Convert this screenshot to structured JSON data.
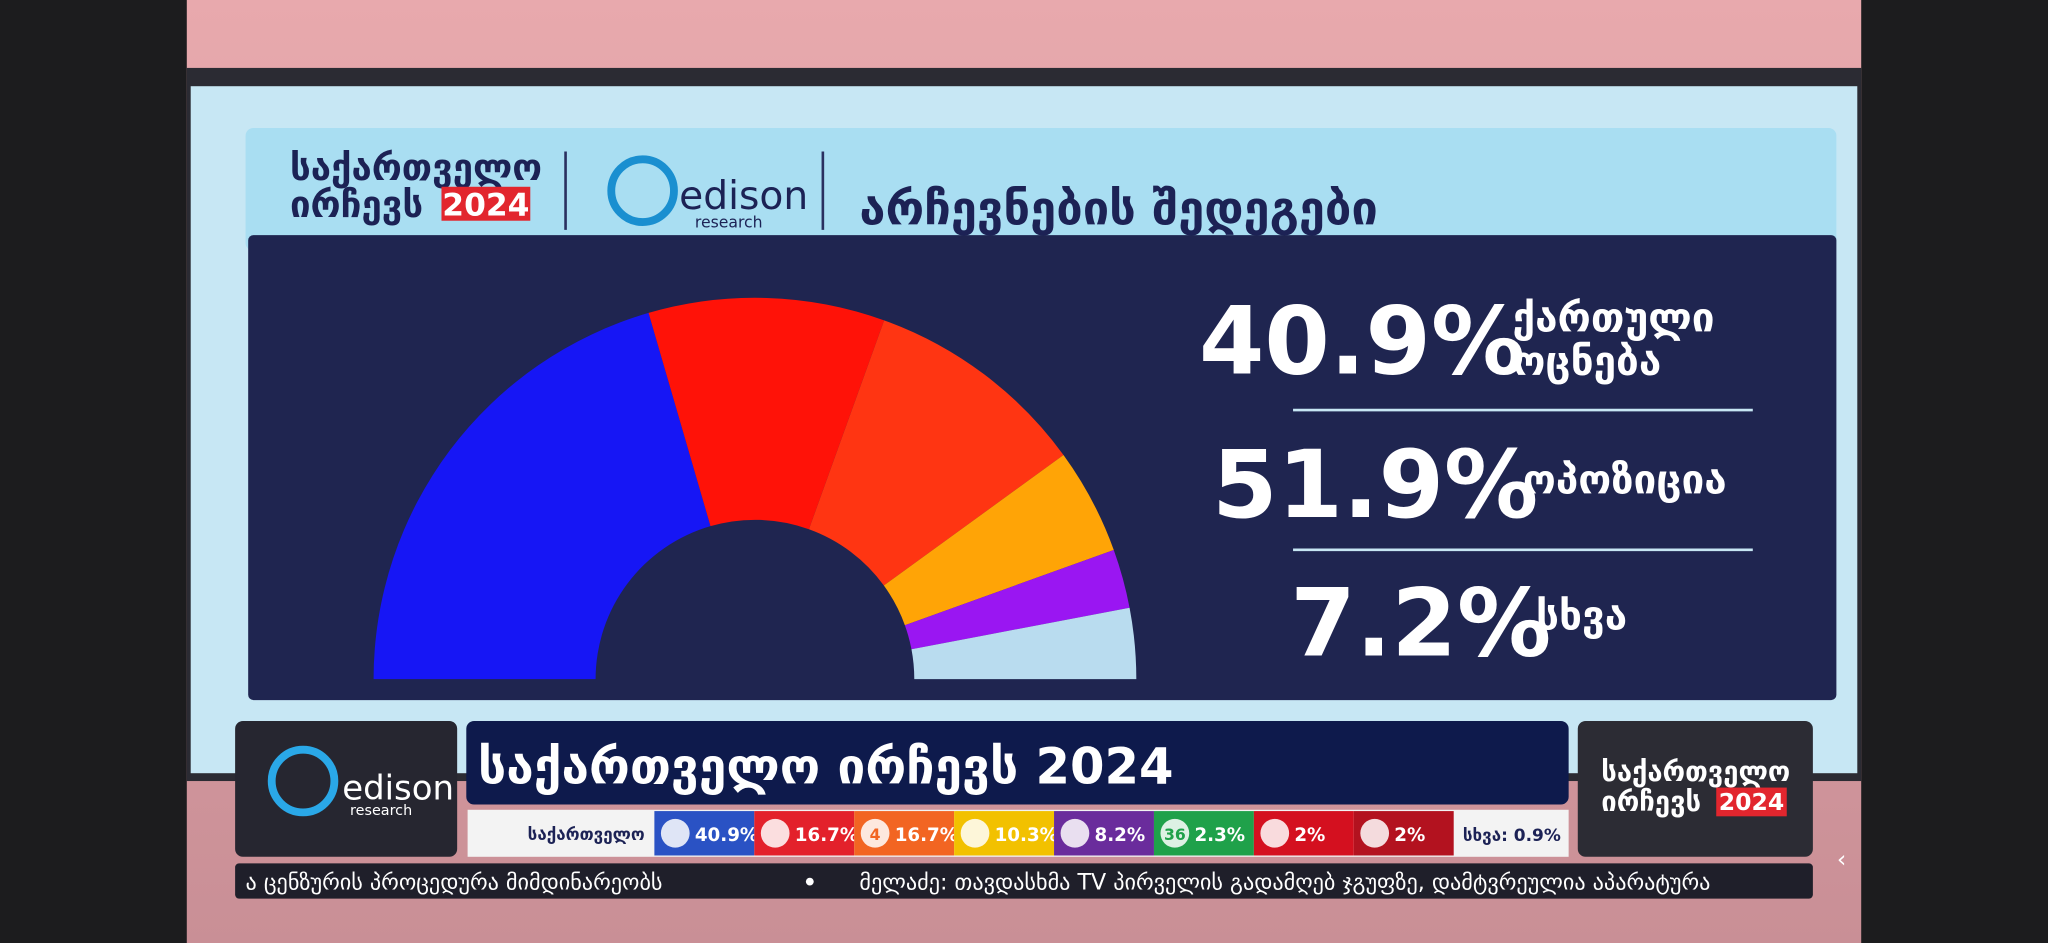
{
  "header": {
    "brand_line1": "საქართველო",
    "brand_line2": "ირჩევს",
    "brand_year": "2024",
    "logo_name": "edison",
    "logo_sub": "research",
    "title": "არჩევნების შედეგები"
  },
  "chart_data": {
    "type": "pie",
    "half": true,
    "values": [
      41,
      20,
      19,
      9,
      5,
      6
    ],
    "colors": [
      "#1616f5",
      "#ff1208",
      "#ff3512",
      "#ffa406",
      "#9a16f2",
      "#b9dcef"
    ]
  },
  "results": [
    {
      "value": "40.9%",
      "label_lines": [
        "ქართული",
        "ოცნება"
      ]
    },
    {
      "value": "51.9%",
      "label_lines": [
        "ოპოზიცია"
      ]
    },
    {
      "value": "7.2%",
      "label_lines": [
        "სხვა"
      ]
    }
  ],
  "lower_third": {
    "logo_name": "edison",
    "logo_sub": "research",
    "title": "საქართველო ირჩევს 2024",
    "brand_line1": "საქართველო",
    "brand_line2": "ირჩევს",
    "brand_year": "2024",
    "strip_label": "საქართველო",
    "parties": [
      {
        "badge": "",
        "value": "40.9%",
        "color": "#2a52c4"
      },
      {
        "badge": "",
        "value": "16.7%",
        "color": "#e3212b"
      },
      {
        "badge": "4",
        "value": "16.7%",
        "color": "#f26522"
      },
      {
        "badge": "",
        "value": "10.3%",
        "color": "#f2c100"
      },
      {
        "badge": "",
        "value": "8.2%",
        "color": "#6a2c9c"
      },
      {
        "badge": "36",
        "value": "2.3%",
        "color": "#1fa14a"
      },
      {
        "badge": "",
        "value": "2%",
        "color": "#d4101f"
      },
      {
        "badge": "",
        "value": "2%",
        "color": "#b3121f"
      }
    ],
    "other": "სხვა: 0.9%"
  },
  "ticker": {
    "items": [
      "ა ცენზურის პროცედურა მიმდინარეობს",
      "მელაძე: თავდასხმა TV პირველის გადამღებ ჯგუფზე, დამტვრეულია აპარატურა"
    ]
  }
}
